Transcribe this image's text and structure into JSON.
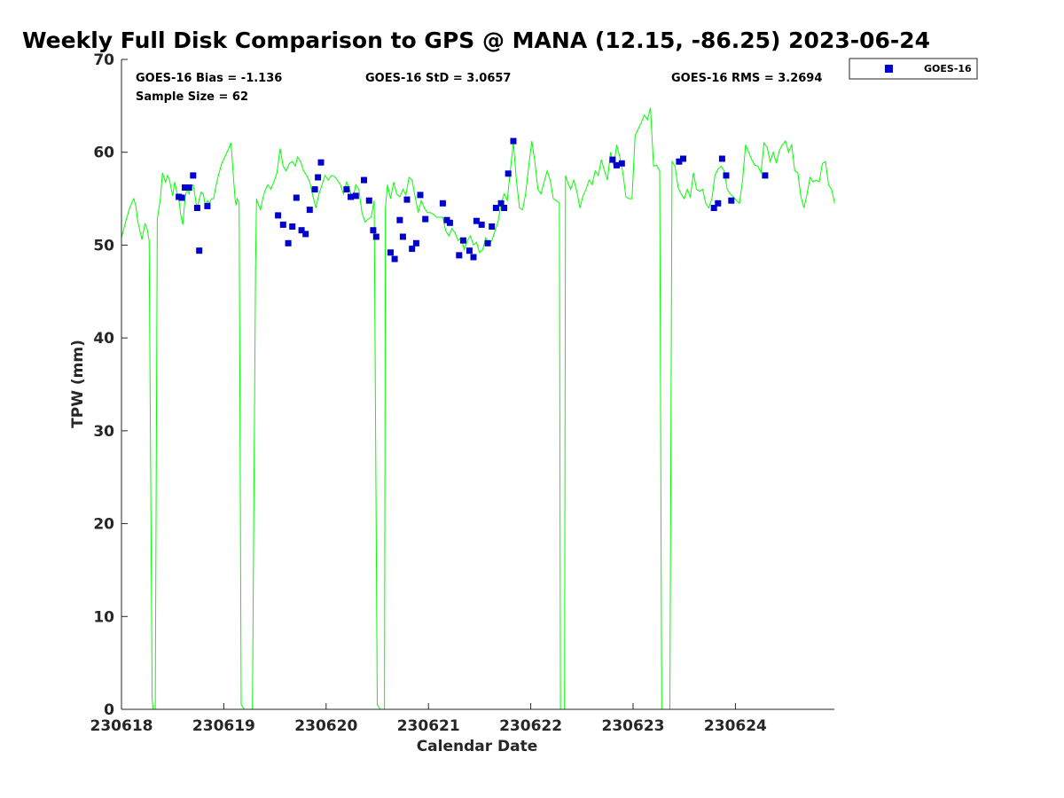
{
  "chart_data": {
    "type": "scatter",
    "title": "Weekly Full Disk Comparison to GPS @ MANA (12.15, -86.25) 2023-06-24",
    "xlabel": "Calendar Date",
    "ylabel": "TPW (mm)",
    "xlim": [
      230618,
      230625
    ],
    "ylim": [
      0,
      70
    ],
    "x_tick_labels": [
      "230618",
      "230619",
      "230620",
      "230621",
      "230622",
      "230623",
      "230624"
    ],
    "y_ticks": [
      0,
      10,
      20,
      30,
      40,
      50,
      60,
      70
    ],
    "stats": {
      "bias": "GOES-16 Bias = -1.136",
      "std": "GOES-16 StD = 3.0657",
      "rms": "GOES-16 RMS = 3.2694",
      "sample_size": "Sample Size = 62"
    },
    "legend": {
      "label": "GOES-16",
      "location": "outside top-right"
    },
    "series": [
      {
        "name": "GOES-16",
        "kind": "scatter",
        "color": "#0000cc",
        "x": [
          0.56,
          0.59,
          0.62,
          0.66,
          0.7,
          0.74,
          0.76,
          0.84,
          1.53,
          1.58,
          1.63,
          1.67,
          1.71,
          1.76,
          1.8,
          1.84,
          1.89,
          1.92,
          1.95,
          2.2,
          2.24,
          2.29,
          2.37,
          2.42,
          2.46,
          2.49,
          2.63,
          2.67,
          2.72,
          2.75,
          2.79,
          2.84,
          2.88,
          2.92,
          2.97,
          3.14,
          3.18,
          3.21,
          3.3,
          3.34,
          3.4,
          3.44,
          3.47,
          3.52,
          3.58,
          3.62,
          3.66,
          3.71,
          3.74,
          3.78,
          3.83,
          4.8,
          4.84,
          4.89,
          5.45,
          5.49,
          5.79,
          5.83,
          5.87,
          5.91,
          5.96,
          6.29
        ],
        "y": [
          55.2,
          55.1,
          56.2,
          56.2,
          57.5,
          54.0,
          49.4,
          54.2,
          53.2,
          52.2,
          50.2,
          52.0,
          55.1,
          51.6,
          51.2,
          53.8,
          56.0,
          57.3,
          58.9,
          56.0,
          55.2,
          55.3,
          57.0,
          54.8,
          51.6,
          50.9,
          49.2,
          48.5,
          52.7,
          50.9,
          54.9,
          49.6,
          50.2,
          55.4,
          52.8,
          54.5,
          52.7,
          52.4,
          48.9,
          50.5,
          49.4,
          48.7,
          52.6,
          52.2,
          50.2,
          52.0,
          54.0,
          54.5,
          54.0,
          57.7,
          61.2,
          59.2,
          58.6,
          58.8,
          59.0,
          59.3,
          54.0,
          54.5,
          59.3,
          57.5,
          54.8,
          57.5
        ]
      },
      {
        "name": "GPS",
        "kind": "line",
        "color": "#00ff00",
        "x": [
          0.0,
          0.04,
          0.08,
          0.12,
          0.14,
          0.16,
          0.2,
          0.23,
          0.25,
          0.27,
          0.3,
          0.31,
          0.32,
          0.33,
          0.35,
          0.38,
          0.4,
          0.43,
          0.45,
          0.47,
          0.5,
          0.52,
          0.54,
          0.56,
          0.58,
          0.6,
          0.62,
          0.64,
          0.66,
          0.68,
          0.7,
          0.72,
          0.74,
          0.76,
          0.78,
          0.8,
          0.82,
          0.84,
          0.86,
          0.88,
          0.9,
          0.92,
          0.95,
          0.98,
          1.01,
          1.04,
          1.07,
          1.1,
          1.11,
          1.12,
          1.13,
          1.15,
          1.17,
          1.2,
          1.23,
          1.26,
          1.28,
          1.3,
          1.31,
          1.32,
          1.33,
          1.36,
          1.38,
          1.4,
          1.43,
          1.46,
          1.49,
          1.52,
          1.55,
          1.58,
          1.61,
          1.64,
          1.67,
          1.7,
          1.72,
          1.75,
          1.78,
          1.81,
          1.84,
          1.87,
          1.9,
          1.93,
          1.96,
          1.99,
          2.02,
          2.05,
          2.08,
          2.11,
          2.14,
          2.17,
          2.2,
          2.23,
          2.26,
          2.29,
          2.32,
          2.35,
          2.38,
          2.41,
          2.44,
          2.47,
          2.5,
          2.53,
          2.54,
          2.55,
          2.56,
          2.57,
          2.58,
          2.6,
          2.63,
          2.66,
          2.69,
          2.72,
          2.75,
          2.78,
          2.81,
          2.84,
          2.87,
          2.9,
          2.93,
          2.96,
          2.99,
          3.02,
          3.05,
          3.08,
          3.11,
          3.14,
          3.17,
          3.2,
          3.23,
          3.26,
          3.29,
          3.32,
          3.35,
          3.38,
          3.41,
          3.44,
          3.47,
          3.5,
          3.53,
          3.56,
          3.59,
          3.62,
          3.65,
          3.68,
          3.71,
          3.74,
          3.77,
          3.8,
          3.83,
          3.86,
          3.89,
          3.92,
          3.95,
          3.98,
          4.01,
          4.04,
          4.07,
          4.1,
          4.13,
          4.16,
          4.19,
          4.22,
          4.25,
          4.28,
          4.29,
          4.3,
          4.31,
          4.32,
          4.33,
          4.34,
          4.36,
          4.39,
          4.42,
          4.45,
          4.48,
          4.51,
          4.54,
          4.57,
          4.6,
          4.63,
          4.66,
          4.69,
          4.72,
          4.75,
          4.78,
          4.81,
          4.84,
          4.87,
          4.9,
          4.93,
          4.96,
          4.99,
          5.02,
          5.05,
          5.08,
          5.11,
          5.14,
          5.17,
          5.2,
          5.23,
          5.26,
          5.28,
          5.3,
          5.31,
          5.32,
          5.33,
          5.34,
          5.36,
          5.38,
          5.41,
          5.44,
          5.47,
          5.5,
          5.53,
          5.56,
          5.59,
          5.62,
          5.65,
          5.68,
          5.71,
          5.74,
          5.77,
          5.8,
          5.83,
          5.86,
          5.89,
          5.92,
          5.95,
          5.98,
          6.01,
          6.04,
          6.07,
          6.1,
          6.13,
          6.16,
          6.19,
          6.22,
          6.25,
          6.28,
          6.31,
          6.34,
          6.37,
          6.4,
          6.43,
          6.46,
          6.49,
          6.52,
          6.55,
          6.58,
          6.61,
          6.64,
          6.67,
          6.7,
          6.73,
          6.76,
          6.79,
          6.82,
          6.85,
          6.88,
          6.91,
          6.94,
          6.97
        ],
        "y": [
          50.8,
          52.5,
          54.0,
          55.0,
          54.2,
          52.5,
          50.6,
          52.3,
          51.8,
          50.5,
          1.0,
          0.0,
          0.0,
          0.0,
          52.8,
          55.0,
          57.8,
          56.8,
          57.5,
          57.0,
          55.3,
          56.8,
          55.8,
          55.0,
          53.2,
          52.2,
          54.8,
          56.2,
          55.5,
          56.3,
          56.5,
          55.2,
          53.8,
          55.0,
          55.7,
          55.5,
          54.2,
          54.8,
          54.5,
          55.0,
          55.0,
          56.2,
          57.6,
          58.8,
          59.5,
          60.2,
          61.0,
          56.5,
          55.0,
          54.3,
          55.0,
          54.6,
          0.5,
          0.0,
          0.0,
          0.0,
          0.0,
          31.5,
          47.5,
          55.0,
          54.6,
          53.8,
          55.0,
          55.8,
          56.5,
          56.0,
          56.8,
          57.8,
          60.4,
          58.5,
          58.0,
          58.8,
          59.0,
          58.5,
          59.5,
          59.0,
          58.0,
          57.5,
          56.8,
          55.3,
          54.0,
          55.5,
          56.5,
          57.5,
          57.0,
          57.5,
          57.4,
          57.0,
          56.5,
          55.5,
          56.8,
          56.0,
          55.0,
          56.5,
          56.0,
          53.5,
          52.5,
          52.8,
          53.0,
          54.8,
          0.5,
          0.0,
          0.0,
          0.0,
          0.0,
          0.0,
          54.0,
          56.5,
          55.0,
          56.8,
          55.5,
          55.2,
          56.0,
          55.4,
          57.3,
          57.0,
          55.2,
          53.5,
          54.8,
          54.0,
          53.5,
          53.5,
          53.3,
          53.0,
          53.0,
          53.0,
          51.5,
          51.0,
          51.8,
          51.3,
          50.5,
          50.8,
          49.5,
          50.5,
          51.0,
          50.0,
          50.3,
          49.2,
          49.5,
          50.8,
          50.0,
          50.5,
          51.5,
          52.5,
          54.5,
          55.5,
          54.8,
          58.0,
          61.0,
          57.0,
          54.0,
          53.8,
          55.5,
          58.5,
          61.2,
          59.0,
          56.0,
          55.5,
          56.8,
          58.0,
          57.0,
          55.0,
          54.8,
          54.5,
          0.0,
          0.0,
          0.0,
          0.0,
          0.0,
          57.5,
          56.8,
          56.0,
          57.0,
          55.8,
          54.0,
          55.3,
          56.0,
          57.0,
          56.5,
          58.0,
          57.5,
          59.2,
          58.0,
          57.0,
          60.0,
          58.5,
          60.8,
          59.5,
          57.8,
          55.2,
          55.0,
          55.0,
          61.8,
          62.5,
          63.2,
          64.0,
          63.5,
          64.8,
          58.5,
          58.6,
          58.0,
          0.0,
          0.0,
          0.0,
          0.0,
          0.0,
          0.0,
          0.0,
          59.0,
          58.5,
          56.2,
          55.5,
          55.0,
          56.0,
          55.2,
          57.8,
          56.0,
          55.8,
          56.0,
          54.5,
          54.0,
          55.0,
          57.5,
          58.2,
          58.5,
          58.0,
          56.0,
          55.5,
          55.2,
          54.8,
          54.5,
          57.0,
          60.8,
          60.0,
          59.2,
          58.6,
          58.5,
          57.8,
          61.0,
          60.5,
          59.0,
          60.0,
          58.8,
          60.2,
          60.8,
          61.2,
          60.0,
          60.8,
          58.0,
          57.8,
          55.2,
          54.0,
          55.5,
          57.3,
          56.8,
          57.0,
          56.8,
          58.8,
          59.0,
          56.5,
          56.0,
          54.5
        ]
      }
    ]
  }
}
